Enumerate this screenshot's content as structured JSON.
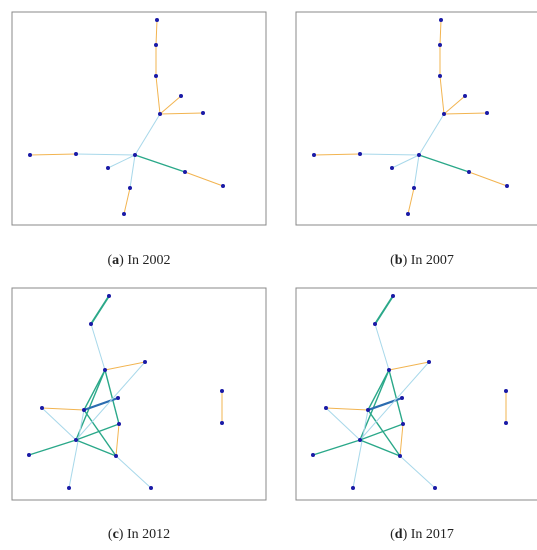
{
  "panels": [
    {
      "prefix": "(",
      "label": "a",
      "suffix": ") In 2002"
    },
    {
      "prefix": "(",
      "label": "b",
      "suffix": ") In 2007"
    },
    {
      "prefix": "(",
      "label": "c",
      "suffix": ") In 2012"
    },
    {
      "prefix": "(",
      "label": "d",
      "suffix": ") In 2017"
    }
  ]
}
